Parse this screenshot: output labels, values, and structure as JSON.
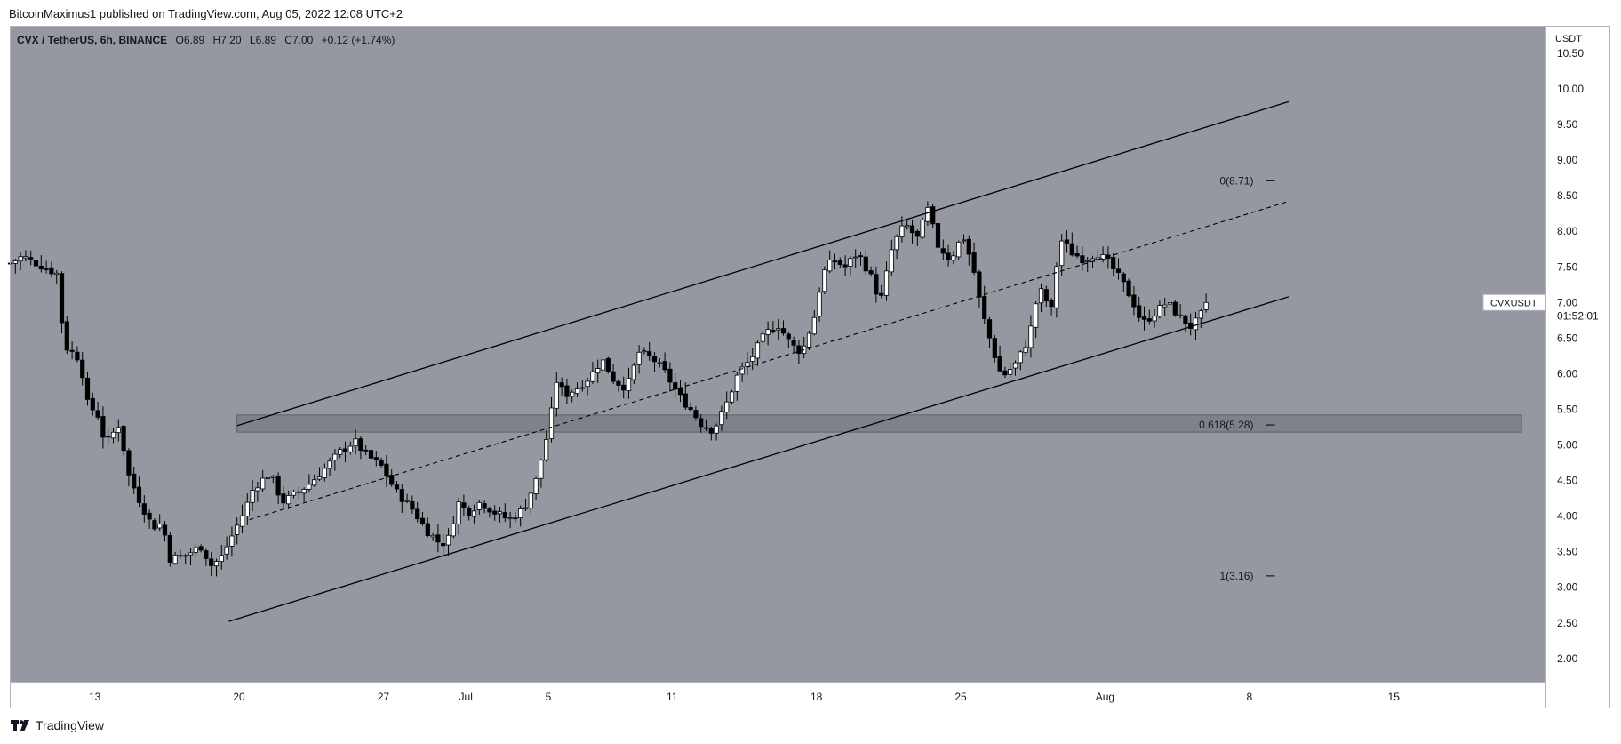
{
  "header": {
    "published_text": "BitcoinMaximus1 published on TradingView.com, Aug 05, 2022 12:08 UTC+2"
  },
  "legend": {
    "symbol": "CVX / TetherUS, 6h, BINANCE",
    "open_label": "O",
    "open": "6.89",
    "high_label": "H",
    "high": "7.20",
    "low_label": "L",
    "low": "6.89",
    "close_label": "C",
    "close": "7.00",
    "change": "+0.12 (+1.74%)"
  },
  "price_axis": {
    "unit": "USDT"
  },
  "price_tag": {
    "symbol": "CVXUSDT",
    "price": "7.00",
    "countdown": "01:52:01"
  },
  "footer": {
    "brand": "TradingView"
  },
  "colors": {
    "background": "#9598a1",
    "up_candle": "#ffffff",
    "down_candle": "#000000",
    "lines": "#000000",
    "zone": "#7b7e87"
  },
  "chart_data": {
    "type": "candlestick",
    "interval": "6h",
    "ylim": [
      1.8,
      10.55
    ],
    "y_ticks": [
      "10.50",
      "10.00",
      "9.50",
      "9.00",
      "8.50",
      "8.00",
      "7.50",
      "7.00",
      "6.50",
      "6.00",
      "5.50",
      "5.00",
      "4.50",
      "4.00",
      "3.50",
      "3.00",
      "2.50",
      "2.00"
    ],
    "x_ticks": [
      {
        "label": "13",
        "day": 13
      },
      {
        "label": "20",
        "day": 20
      },
      {
        "label": "27",
        "day": 27
      },
      {
        "label": "Jul",
        "day": 31
      },
      {
        "label": "5",
        "day": 35
      },
      {
        "label": "11",
        "day": 41
      },
      {
        "label": "18",
        "day": 48
      },
      {
        "label": "25",
        "day": 55
      },
      {
        "label": "Aug",
        "day": 62
      },
      {
        "label": "8",
        "day": 69
      },
      {
        "label": "15",
        "day": 76
      }
    ],
    "x_range_days": [
      8.9,
      82.2
    ],
    "price_path": [
      [
        8.9,
        7.55
      ],
      [
        9.5,
        7.65
      ],
      [
        10.5,
        7.5
      ],
      [
        11.2,
        7.4
      ],
      [
        11.5,
        6.4
      ],
      [
        12.3,
        6.2
      ],
      [
        12.6,
        5.6
      ],
      [
        13.2,
        5.4
      ],
      [
        13.5,
        5.0
      ],
      [
        14.2,
        5.3
      ],
      [
        14.6,
        4.6
      ],
      [
        15.2,
        4.2
      ],
      [
        15.8,
        3.85
      ],
      [
        16.3,
        3.9
      ],
      [
        16.6,
        3.4
      ],
      [
        17.4,
        3.45
      ],
      [
        18.2,
        3.58
      ],
      [
        18.6,
        3.3
      ],
      [
        19.1,
        3.4
      ],
      [
        19.7,
        3.75
      ],
      [
        20.3,
        4.1
      ],
      [
        20.7,
        4.4
      ],
      [
        21.5,
        4.6
      ],
      [
        22.1,
        4.2
      ],
      [
        22.7,
        4.3
      ],
      [
        23.4,
        4.45
      ],
      [
        24.1,
        4.65
      ],
      [
        24.9,
        4.9
      ],
      [
        25.6,
        5.05
      ],
      [
        26.2,
        4.85
      ],
      [
        26.9,
        4.7
      ],
      [
        27.6,
        4.35
      ],
      [
        28.4,
        4.1
      ],
      [
        29.1,
        3.8
      ],
      [
        29.8,
        3.6
      ],
      [
        30.2,
        3.7
      ],
      [
        30.6,
        4.2
      ],
      [
        31.1,
        4.05
      ],
      [
        31.7,
        4.2
      ],
      [
        32.4,
        4.05
      ],
      [
        33.1,
        3.95
      ],
      [
        33.8,
        4.1
      ],
      [
        34.4,
        4.5
      ],
      [
        35.0,
        5.2
      ],
      [
        35.4,
        5.9
      ],
      [
        35.8,
        5.7
      ],
      [
        36.4,
        5.8
      ],
      [
        37.0,
        5.95
      ],
      [
        37.6,
        6.2
      ],
      [
        38.2,
        5.9
      ],
      [
        38.8,
        5.8
      ],
      [
        39.4,
        6.3
      ],
      [
        40.1,
        6.2
      ],
      [
        40.7,
        6.0
      ],
      [
        41.3,
        5.7
      ],
      [
        41.9,
        5.5
      ],
      [
        42.4,
        5.3
      ],
      [
        43.0,
        5.2
      ],
      [
        43.6,
        5.55
      ],
      [
        44.2,
        6.0
      ],
      [
        44.8,
        6.2
      ],
      [
        45.5,
        6.55
      ],
      [
        46.1,
        6.7
      ],
      [
        46.8,
        6.4
      ],
      [
        47.3,
        6.3
      ],
      [
        47.9,
        6.8
      ],
      [
        48.3,
        7.4
      ],
      [
        48.8,
        7.6
      ],
      [
        49.4,
        7.5
      ],
      [
        50.0,
        7.7
      ],
      [
        50.6,
        7.4
      ],
      [
        51.1,
        7.0
      ],
      [
        51.7,
        7.8
      ],
      [
        52.3,
        8.1
      ],
      [
        52.9,
        7.9
      ],
      [
        53.4,
        8.3
      ],
      [
        53.9,
        7.8
      ],
      [
        54.5,
        7.6
      ],
      [
        55.1,
        7.95
      ],
      [
        55.6,
        7.5
      ],
      [
        56.0,
        6.9
      ],
      [
        56.6,
        6.3
      ],
      [
        57.0,
        5.95
      ],
      [
        57.7,
        6.15
      ],
      [
        58.3,
        6.5
      ],
      [
        58.8,
        7.2
      ],
      [
        59.4,
        6.9
      ],
      [
        59.8,
        7.9
      ],
      [
        60.4,
        7.7
      ],
      [
        61.0,
        7.6
      ],
      [
        61.6,
        7.7
      ],
      [
        62.2,
        7.55
      ],
      [
        62.8,
        7.3
      ],
      [
        63.3,
        7.05
      ],
      [
        63.8,
        6.7
      ],
      [
        64.4,
        6.85
      ],
      [
        65.0,
        7.0
      ],
      [
        65.6,
        6.8
      ],
      [
        66.2,
        6.65
      ],
      [
        66.6,
        6.8
      ],
      [
        67.0,
        7.0
      ]
    ],
    "channel": {
      "upper": {
        "from": [
          19.9,
          5.27
        ],
        "to": [
          70.9,
          9.82
        ]
      },
      "lower": {
        "from": [
          19.5,
          2.52
        ],
        "to": [
          70.9,
          7.08
        ]
      },
      "middle": {
        "from": [
          20.5,
          3.95
        ],
        "to": [
          70.9,
          8.42
        ]
      }
    },
    "zone": {
      "x_from": 19.9,
      "x_to": 82.2,
      "y_from": 5.18,
      "y_to": 5.42
    },
    "fib_labels": [
      {
        "text": "0(8.71)",
        "y": 8.71,
        "day": 69.2
      },
      {
        "text": "0.618(5.28)",
        "y": 5.28,
        "day": 69.2
      },
      {
        "text": "1(3.16)",
        "y": 3.16,
        "day": 69.2
      }
    ],
    "last_price": 7.0
  }
}
